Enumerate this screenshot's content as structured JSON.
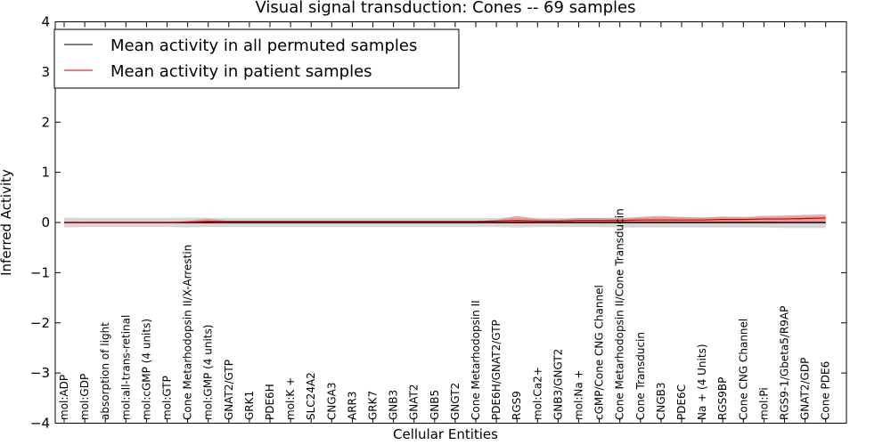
{
  "chart_data": {
    "type": "line",
    "title": "Visual signal transduction: Cones -- 69 samples",
    "xlabel": "Cellular Entities",
    "ylabel": "Inferred Activity",
    "ylim": [
      -4,
      4
    ],
    "yticks": [
      -4,
      -3,
      -2,
      -1,
      0,
      1,
      2,
      3,
      4
    ],
    "legend_position": "upper-left",
    "colors": {
      "permuted": "#000000",
      "patient": "#cc0000",
      "permuted_band": "#c8c8c8",
      "patient_band": "#f08080"
    },
    "categories": [
      "mol:ADP",
      "mol:GDP",
      "absorption of light",
      "mol:all-trans-retinal",
      "mol:cGMP (4 units)",
      "mol:GTP",
      "Cone Metarhodopsin II/X-Arrestin",
      "mol:GMP (4 units)",
      "GNAT2/GTP",
      "GRK1",
      "PDE6H",
      "mol:K +",
      "SLC24A2",
      "CNGA3",
      "ARR3",
      "GRK7",
      "GNB3",
      "GNAT2",
      "GNB5",
      "GNGT2",
      "Cone Metarhodopsin II",
      "PDE6H/GNAT2/GTP",
      "RGS9",
      "mol:Ca2+",
      "GNB3/GNGT2",
      "mol:Na +",
      "cGMP/Cone CNG Channel",
      "Cone Metarhodopsin II/Cone Transducin",
      "Cone Transducin",
      "CNGB3",
      "PDE6C",
      "Na + (4 Units)",
      "RGS9BP",
      "Cone CNG Channel",
      "mol:Pi",
      "RGS9-1/Gbeta5/R9AP",
      "GNAT2/GDP",
      "Cone PDE6"
    ],
    "series": [
      {
        "name": "Mean activity in all permuted samples",
        "values": [
          0,
          0,
          0,
          0,
          0,
          0,
          0,
          0,
          0,
          0,
          0,
          0,
          0,
          0,
          0,
          0,
          0,
          0,
          0,
          0,
          0,
          0,
          0,
          0,
          0,
          0,
          0,
          0,
          0,
          0,
          0,
          0,
          0,
          0,
          0,
          0,
          0,
          0
        ],
        "band_low": [
          -0.1,
          -0.09,
          -0.09,
          -0.09,
          -0.09,
          -0.09,
          -0.1,
          -0.09,
          -0.09,
          -0.09,
          -0.09,
          -0.09,
          -0.09,
          -0.09,
          -0.09,
          -0.09,
          -0.09,
          -0.09,
          -0.09,
          -0.09,
          -0.09,
          -0.09,
          -0.1,
          -0.09,
          -0.09,
          -0.09,
          -0.09,
          -0.1,
          -0.1,
          -0.1,
          -0.1,
          -0.1,
          -0.1,
          -0.1,
          -0.1,
          -0.11,
          -0.11,
          -0.11
        ],
        "band_high": [
          0.1,
          0.09,
          0.09,
          0.09,
          0.09,
          0.09,
          0.1,
          0.09,
          0.09,
          0.09,
          0.09,
          0.09,
          0.09,
          0.09,
          0.09,
          0.09,
          0.09,
          0.09,
          0.09,
          0.09,
          0.09,
          0.09,
          0.1,
          0.09,
          0.09,
          0.09,
          0.09,
          0.1,
          0.1,
          0.1,
          0.1,
          0.1,
          0.1,
          0.1,
          0.1,
          0.11,
          0.11,
          0.11
        ]
      },
      {
        "name": "Mean activity in patient samples",
        "values": [
          0,
          0,
          0,
          0,
          0,
          0,
          0.01,
          0.02,
          0.02,
          0.02,
          0.02,
          0.02,
          0.02,
          0.02,
          0.02,
          0.02,
          0.02,
          0.02,
          0.02,
          0.02,
          0.02,
          0.03,
          0.04,
          0.03,
          0.03,
          0.04,
          0.04,
          0.04,
          0.05,
          0.05,
          0.05,
          0.05,
          0.06,
          0.06,
          0.07,
          0.07,
          0.08,
          0.09
        ],
        "band_low": [
          0,
          0,
          0,
          0,
          0,
          0,
          0,
          -0.02,
          0.01,
          0.01,
          0.01,
          0.01,
          0.01,
          0.01,
          0.01,
          0.01,
          0.01,
          0.01,
          0.01,
          0.01,
          0.01,
          0.01,
          -0.02,
          0,
          0.01,
          0,
          0,
          0.01,
          0,
          -0.01,
          0,
          0.01,
          0.01,
          0.01,
          0.01,
          0.02,
          0.02,
          0.02
        ],
        "band_high": [
          0,
          0,
          0,
          0,
          0,
          0.01,
          0.03,
          0.08,
          0.03,
          0.03,
          0.03,
          0.03,
          0.03,
          0.03,
          0.03,
          0.03,
          0.03,
          0.03,
          0.03,
          0.03,
          0.03,
          0.05,
          0.13,
          0.07,
          0.06,
          0.09,
          0.09,
          0.08,
          0.11,
          0.13,
          0.11,
          0.1,
          0.12,
          0.11,
          0.13,
          0.14,
          0.15,
          0.16
        ]
      }
    ]
  }
}
